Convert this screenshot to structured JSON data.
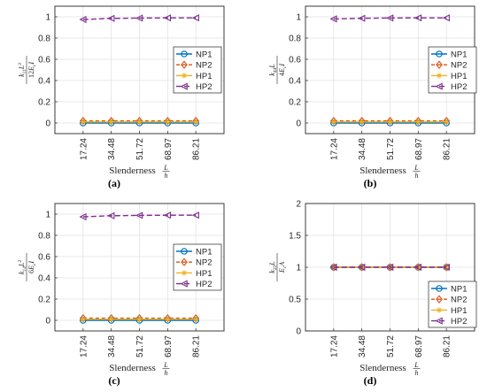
{
  "figure": {
    "panels": [
      "(a)",
      "(b)",
      "(c)",
      "(d)"
    ]
  },
  "chart_data": [
    {
      "type": "line",
      "panel_label": "(a)",
      "x": [
        "17.24",
        "34.48",
        "51.72",
        "68.97",
        "86.21"
      ],
      "xlabel": "Slenderness L/h",
      "ylabel": "k11 L^3 / (12 Ec I)",
      "ylim": [
        -0.1,
        1.1
      ],
      "yticks": [
        "0",
        "0.2",
        "0.4",
        "0.6",
        "0.8",
        "1"
      ],
      "grid": true,
      "legend_position": "middle-right",
      "series": [
        {
          "name": "NP1",
          "values": [
            0.0,
            0.0,
            0.0,
            0.0,
            0.0
          ]
        },
        {
          "name": "NP2",
          "values": [
            0.02,
            0.02,
            0.02,
            0.02,
            0.02
          ]
        },
        {
          "name": "HP1",
          "values": [
            0.01,
            0.01,
            0.01,
            0.01,
            0.01
          ]
        },
        {
          "name": "HP2",
          "values": [
            0.975,
            0.985,
            0.988,
            0.99,
            0.99
          ]
        }
      ]
    },
    {
      "type": "line",
      "panel_label": "(b)",
      "x": [
        "17.24",
        "34.48",
        "51.72",
        "68.97",
        "86.21"
      ],
      "xlabel": "Slenderness L/h",
      "ylabel": "k44 L / (4 Ec I)",
      "ylim": [
        -0.1,
        1.1
      ],
      "yticks": [
        "0",
        "0.2",
        "0.4",
        "0.6",
        "0.8",
        "1"
      ],
      "grid": true,
      "legend_position": "middle-right",
      "series": [
        {
          "name": "NP1",
          "values": [
            0.0,
            0.0,
            0.0,
            0.0,
            0.0
          ]
        },
        {
          "name": "NP2",
          "values": [
            0.02,
            0.02,
            0.02,
            0.02,
            0.02
          ]
        },
        {
          "name": "HP1",
          "values": [
            0.01,
            0.01,
            0.01,
            0.01,
            0.01
          ]
        },
        {
          "name": "HP2",
          "values": [
            0.98,
            0.986,
            0.989,
            0.99,
            0.99
          ]
        }
      ]
    },
    {
      "type": "line",
      "panel_label": "(c)",
      "x": [
        "17.24",
        "34.48",
        "51.72",
        "68.97",
        "86.21"
      ],
      "xlabel": "Slenderness L/h",
      "ylabel": "k14 L^2 / (6 Ec I)",
      "ylim": [
        -0.1,
        1.1
      ],
      "yticks": [
        "0",
        "0.2",
        "0.4",
        "0.6",
        "0.8",
        "1"
      ],
      "grid": true,
      "legend_position": "bottom-right",
      "series": [
        {
          "name": "NP1",
          "values": [
            0.0,
            0.0,
            0.0,
            0.0,
            0.0
          ]
        },
        {
          "name": "NP2",
          "values": [
            0.02,
            0.02,
            0.02,
            0.02,
            0.02
          ]
        },
        {
          "name": "HP1",
          "values": [
            0.01,
            0.01,
            0.01,
            0.01,
            0.01
          ]
        },
        {
          "name": "HP2",
          "values": [
            0.975,
            0.985,
            0.988,
            0.99,
            0.99
          ]
        }
      ]
    },
    {
      "type": "line",
      "panel_label": "(d)",
      "x": [
        "17.24",
        "34.48",
        "51.72",
        "68.97",
        "86.21"
      ],
      "xlabel": "Slenderness L/h",
      "ylabel": "k22 L / (Ec A)",
      "ylim": [
        0,
        2
      ],
      "yticks": [
        "0",
        "0.5",
        "1",
        "1.5",
        "2"
      ],
      "grid": true,
      "legend_position": "bottom-right",
      "series": [
        {
          "name": "NP1",
          "values": [
            1.0,
            1.0,
            1.0,
            1.0,
            1.0
          ]
        },
        {
          "name": "NP2",
          "values": [
            1.0,
            1.0,
            1.0,
            1.0,
            1.0
          ]
        },
        {
          "name": "HP1",
          "values": [
            1.0,
            1.0,
            1.0,
            1.0,
            1.0
          ]
        },
        {
          "name": "HP2",
          "values": [
            1.0,
            1.0,
            1.0,
            1.0,
            1.0
          ]
        }
      ]
    }
  ],
  "styles": {
    "NP1": {
      "color": "#0072BD",
      "marker": "circle",
      "dash": "none"
    },
    "NP2": {
      "color": "#D95319",
      "marker": "diamond",
      "dash": "4,3"
    },
    "HP1": {
      "color": "#EDB120",
      "marker": "star",
      "dash": "none"
    },
    "HP2": {
      "color": "#7E2F8E",
      "marker": "triangle-left",
      "dash": "6,3"
    }
  }
}
